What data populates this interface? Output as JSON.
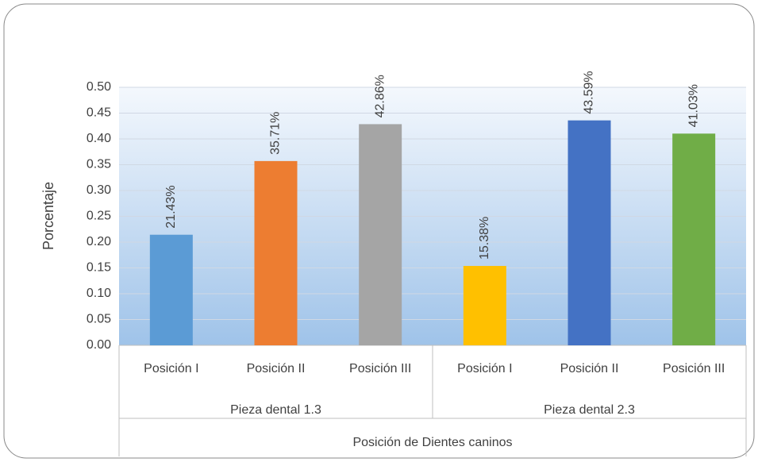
{
  "chart_data": {
    "type": "bar",
    "categories": [
      "Posición I",
      "Posición II",
      "Posición III",
      "Posición I",
      "Posición II",
      "Posición III"
    ],
    "groups": [
      "Pieza dental 1.3",
      "Pieza dental 2.3"
    ],
    "values": [
      0.2143,
      0.3571,
      0.4286,
      0.1538,
      0.4359,
      0.4103
    ],
    "value_labels": [
      "21.43%",
      "35.71%",
      "42.86%",
      "15.38%",
      "43.59%",
      "41.03%"
    ],
    "colors": [
      "#5b9bd5",
      "#ed7d31",
      "#a5a5a5",
      "#ffc000",
      "#4472c4",
      "#70ad47"
    ],
    "ylabel": "Porcentaje",
    "xlabel": "Posición de Dientes caninos",
    "ylim": [
      0,
      0.5
    ],
    "yticks": [
      {
        "value": 0,
        "label": "0.00"
      },
      {
        "value": 0.05,
        "label": "0.05"
      },
      {
        "value": 0.1,
        "label": "0.10"
      },
      {
        "value": 0.15,
        "label": "0.15"
      },
      {
        "value": 0.2,
        "label": "0.20"
      },
      {
        "value": 0.25,
        "label": "0.25"
      },
      {
        "value": 0.3,
        "label": "0.30"
      },
      {
        "value": 0.35,
        "label": "0.35"
      },
      {
        "value": 0.4,
        "label": "0.40"
      },
      {
        "value": 0.45,
        "label": "0.45"
      },
      {
        "value": 0.5,
        "label": "0.50"
      }
    ],
    "grid": true
  }
}
